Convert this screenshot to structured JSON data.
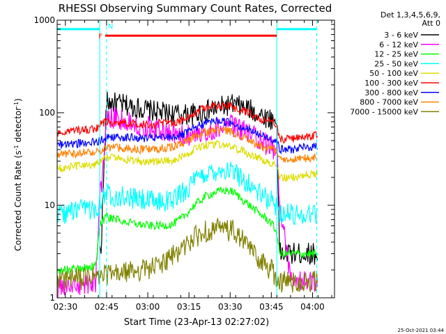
{
  "chart_data": {
    "type": "line",
    "title": "RHESSI Observing Summary Count Rates, Corrected",
    "xlabel": "Start Time (23-Apr-13 02:27:02)",
    "ylabel_main": "Corrected Count Rate (s",
    "ylabel_sup1": "-1",
    "ylabel_mid": " detector",
    "ylabel_sup2": "-1",
    "ylabel_end": ")",
    "y_scale": "log",
    "ylim": [
      1,
      1000
    ],
    "xlim_min": [
      0,
      101
    ],
    "x_ticks": [
      {
        "t": 3,
        "label": "02:30"
      },
      {
        "t": 18,
        "label": "02:45"
      },
      {
        "t": 33,
        "label": "03:00"
      },
      {
        "t": 48,
        "label": "03:15"
      },
      {
        "t": 63,
        "label": "03:30"
      },
      {
        "t": 78,
        "label": "03:45"
      },
      {
        "t": 93,
        "label": "04:00"
      }
    ],
    "y_ticks": [
      {
        "v": 1,
        "label": "1"
      },
      {
        "v": 10,
        "label": "10"
      },
      {
        "v": 100,
        "label": "100"
      },
      {
        "v": 1000,
        "label": "1000"
      }
    ],
    "legend_header": [
      "Det 1,3,4,5,6,9,",
      "Att 0"
    ],
    "legend_position": "right",
    "flags": [
      {
        "label": "F",
        "color": "#ff0000",
        "from": 17.5,
        "to": 80,
        "y": 680
      },
      {
        "label": "N",
        "color": "#00ffff",
        "from": 18,
        "to": 18
      },
      {
        "label": "",
        "color": "#00ffff",
        "from": 0,
        "to": 15.5,
        "y": 800
      },
      {
        "label": "",
        "color": "#00ffff",
        "from": 80,
        "to": 94.5,
        "y": 800
      }
    ],
    "cyan_lines": [
      15.5,
      80
    ],
    "dashed_lines": [
      18,
      94.5
    ],
    "x": [
      0,
      5,
      10,
      14,
      15.5,
      16,
      18,
      22,
      26,
      30,
      34,
      38,
      42,
      46,
      50,
      54,
      58,
      62,
      64,
      66,
      70,
      74,
      78,
      80,
      81,
      85,
      90,
      94,
      95
    ],
    "series": [
      {
        "name": "3 - 6 keV",
        "color": "#000000",
        "values": [
          null,
          null,
          null,
          null,
          3.2,
          3.5,
          130,
          125,
          118,
          112,
          105,
          100,
          97,
          95,
          97,
          103,
          112,
          120,
          122,
          118,
          108,
          95,
          85,
          78,
          3,
          3,
          3,
          3,
          3
        ]
      },
      {
        "name": "6 - 12 keV",
        "color": "#ff00ff",
        "values": [
          1.3,
          1.3,
          1.4,
          1.5,
          12,
          14,
          92,
          85,
          80,
          75,
          70,
          65,
          60,
          57,
          58,
          62,
          68,
          72,
          72,
          68,
          60,
          50,
          42,
          38,
          11,
          1.5,
          1.5,
          1.5,
          1.5
        ]
      },
      {
        "name": "12 - 25 keV",
        "color": "#00ff00",
        "values": [
          2,
          2,
          2.1,
          2.2,
          6,
          6.5,
          7.5,
          7,
          6.5,
          6.2,
          6,
          6,
          6.2,
          7.5,
          10,
          12.5,
          14,
          14.5,
          14,
          12.5,
          10,
          8,
          6.5,
          5,
          3,
          3,
          3,
          3,
          3
        ]
      },
      {
        "name": "25 - 50 keV",
        "color": "#00ffff",
        "values": [
          8,
          8.5,
          9,
          9.5,
          10.5,
          12,
          13.5,
          12.5,
          12,
          11.5,
          11,
          11,
          11.5,
          14,
          18,
          22,
          24,
          24,
          23,
          21,
          17,
          13,
          11,
          10,
          8.5,
          8,
          8,
          8.2,
          8.5
        ]
      },
      {
        "name": "50 - 100 keV",
        "color": "#dddd00",
        "values": [
          25,
          26,
          27,
          28,
          30,
          31,
          33,
          32,
          31,
          30,
          30,
          30,
          31,
          34,
          40,
          44,
          45,
          44,
          43,
          40,
          36,
          32,
          28,
          26,
          20,
          20,
          21,
          22,
          22
        ]
      },
      {
        "name": "100 - 300 keV",
        "color": "#ff0000",
        "values": [
          60,
          63,
          65,
          67,
          72,
          75,
          80,
          79,
          77,
          76,
          75,
          76,
          78,
          84,
          100,
          115,
          120,
          118,
          115,
          108,
          98,
          87,
          80,
          76,
          52,
          52,
          55,
          57,
          58
        ]
      },
      {
        "name": "300 - 800 keV",
        "color": "#0000ff",
        "values": [
          45,
          46,
          47,
          48,
          50,
          51,
          55,
          55,
          54,
          53,
          53,
          54,
          55,
          58,
          68,
          78,
          82,
          80,
          78,
          73,
          65,
          57,
          52,
          50,
          40,
          40,
          42,
          43,
          44
        ]
      },
      {
        "name": "800 - 7000 keV",
        "color": "#ff8000",
        "values": [
          35,
          36,
          37,
          38,
          39,
          40,
          42,
          42,
          41,
          40,
          40,
          41,
          43,
          47,
          55,
          62,
          65,
          63,
          62,
          58,
          50,
          44,
          40,
          38,
          31,
          31,
          32,
          33,
          34
        ]
      },
      {
        "name": "7000 - 15000 keV",
        "color": "#808000",
        "values": [
          1.5,
          1.6,
          1.6,
          1.7,
          1.6,
          1.7,
          1.8,
          1.8,
          1.9,
          2,
          2.1,
          2.3,
          2.8,
          3.5,
          4.5,
          5.2,
          5.5,
          5.4,
          5.2,
          4.6,
          3.5,
          2.5,
          2,
          1.6,
          1.5,
          1.5,
          1.5,
          1.5,
          1.5
        ]
      }
    ]
  },
  "footer": {
    "timestamp": "25-Oct-2021 03:44"
  }
}
